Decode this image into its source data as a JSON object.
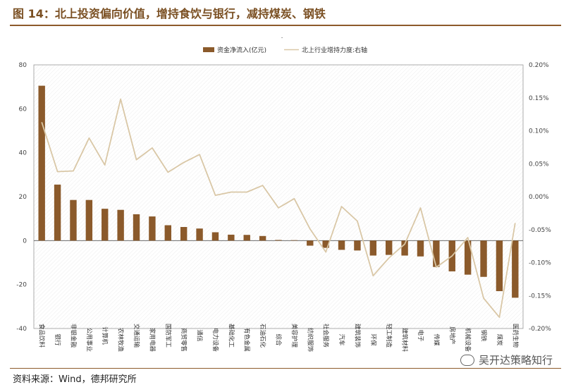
{
  "header": {
    "title": "图 14：北上投资偏向价值，增持食饮与银行，减持煤炭、钢铁"
  },
  "footer": {
    "source": "资料来源：Wind，德邦研究所",
    "watermark": "吴开达策略知行"
  },
  "chart_data": {
    "type": "bar",
    "categories": [
      "食品饮料",
      "银行",
      "非银金融",
      "公用事业",
      "计算机",
      "农林牧渔",
      "交通运输",
      "家用电器",
      "国防军工",
      "商贸零售",
      "通信",
      "电力设备",
      "基础化工",
      "有色金属",
      "石油石化",
      "综合",
      "美容护理",
      "纺织服饰",
      "社会服务",
      "汽车",
      "建筑装饰",
      "环保",
      "轻工制造",
      "建筑材料",
      "电子",
      "传媒",
      "房地产",
      "机械设备",
      "钢铁",
      "煤炭",
      "医药生物"
    ],
    "series": [
      {
        "name": "资金净流入(亿元)",
        "type": "bar",
        "axis": "left",
        "color": "#8b5a2b",
        "values": [
          70.5,
          25.5,
          18.5,
          18.5,
          14.5,
          14,
          12,
          11,
          7,
          6.2,
          5.5,
          3.8,
          2.7,
          2.6,
          2.1,
          0.3,
          0.2,
          -2.3,
          -3.3,
          -4.2,
          -4.5,
          -6.8,
          -6.5,
          -6.8,
          -7.2,
          -12,
          -14,
          -15.5,
          -16.5,
          -23,
          -26
        ]
      },
      {
        "name": "北上行业增持力度:右轴",
        "type": "line",
        "axis": "right",
        "color": "#d9c7a6",
        "values": [
          0.00113,
          0.00038,
          0.00039,
          0.00089,
          0.00048,
          0.00148,
          0.00056,
          0.00074,
          0.00037,
          0.00052,
          0.00064,
          2e-05,
          7e-05,
          7e-05,
          0.00017,
          -0.00017,
          -3e-05,
          -0.00049,
          -0.00084,
          -0.00015,
          -0.00037,
          -0.0012,
          -0.00093,
          -0.00072,
          -0.00017,
          -0.00107,
          -0.0009,
          -0.00062,
          -0.00154,
          -0.00183,
          -0.0004
        ]
      }
    ],
    "y_left": {
      "min": -40,
      "max": 80,
      "ticks": [
        "-40",
        "-20",
        "0",
        "20",
        "40",
        "60",
        "80"
      ]
    },
    "y_right": {
      "min": -0.002,
      "max": 0.002,
      "ticks": [
        "-0.20%",
        "-0.15%",
        "-0.10%",
        "-0.05%",
        "0.00%",
        "0.05%",
        "0.10%",
        "0.15%",
        "0.20%"
      ]
    },
    "legend_position": "top",
    "top_marker": "."
  }
}
